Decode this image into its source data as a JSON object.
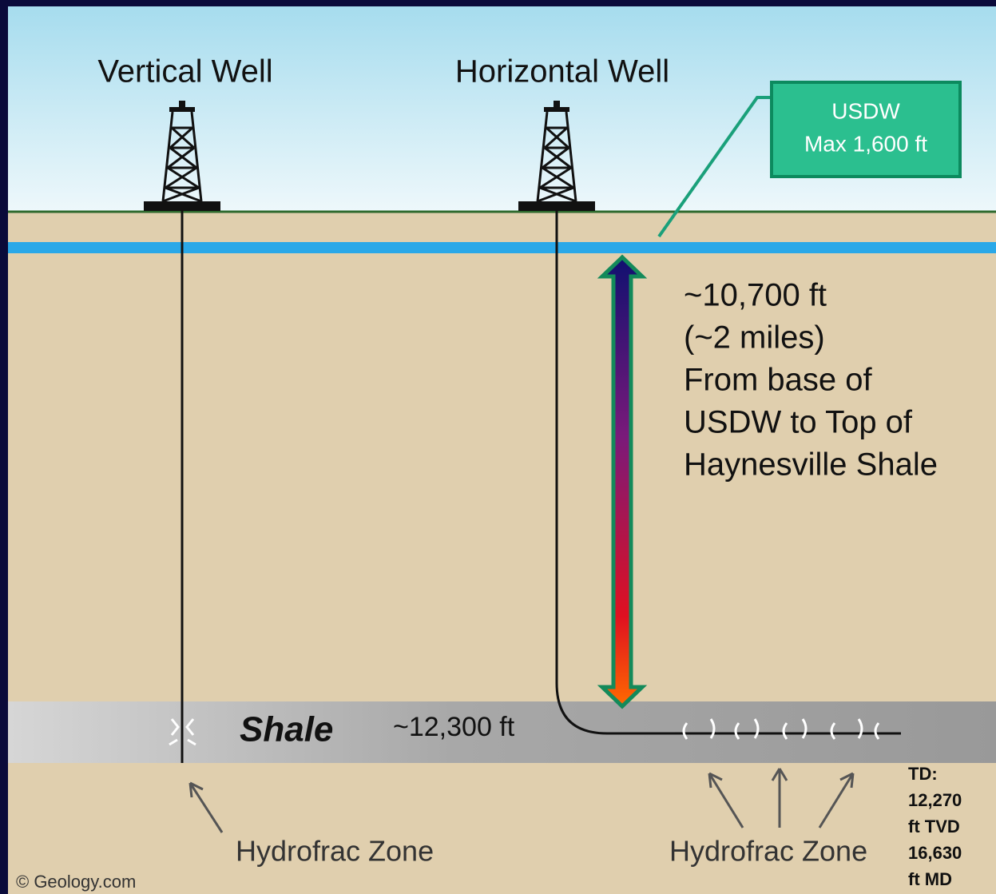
{
  "wells": {
    "vertical": "Vertical Well",
    "horizontal": "Horizontal Well"
  },
  "usdw_box": {
    "line1": "USDW",
    "line2": "Max 1,600 ft"
  },
  "distance_note": [
    "~10,700 ft",
    "(~2 miles)",
    "From base of",
    "USDW to Top of",
    "Haynesville Shale"
  ],
  "shale": {
    "label": "Shale",
    "depth": "~12,300 ft"
  },
  "hydrofrac_labels": [
    "Hydrofrac Zone",
    "Hydrofrac Zone"
  ],
  "td_note": [
    "TD:",
    "12,270",
    "ft TVD",
    "16,630",
    "ft MD"
  ],
  "credit": "© Geology.com"
}
